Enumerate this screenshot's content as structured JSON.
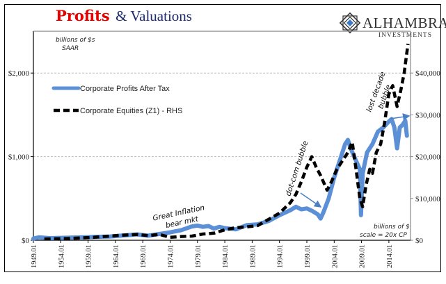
{
  "chart_data": {
    "type": "line",
    "title": {
      "part1": "Profits",
      "part2": "& Valuations"
    },
    "logo": {
      "name": "ALHAMBRA",
      "sub": "INVESTMENTS"
    },
    "left_axis": {
      "unit_note_line1": "billions of $s",
      "unit_note_line2": "SAAR",
      "ylim": [
        0,
        2500
      ],
      "ticks": [
        0,
        1000,
        2000
      ],
      "tick_labels": [
        "$0",
        "$1,000",
        "$2,000"
      ]
    },
    "right_axis": {
      "unit_note_line1": "billions of $",
      "unit_note_line2": "scale = 20x CP",
      "ylim": [
        0,
        50000
      ],
      "ticks": [
        0,
        10000,
        20000,
        30000,
        40000
      ],
      "tick_labels": [
        "$0",
        "$10,000",
        "$20,000",
        "$30,000",
        "$40,000"
      ]
    },
    "x_axis": {
      "xlim": [
        1949,
        2018
      ],
      "ticks": [
        1949,
        1954,
        1959,
        1964,
        1969,
        1974,
        1979,
        1984,
        1989,
        1994,
        1999,
        2004,
        2009,
        2014
      ],
      "tick_labels": [
        "1949.01",
        "1954.01",
        "1959.01",
        "1964.01",
        "1969.01",
        "1974.01",
        "1979.01",
        "1984.01",
        "1989.01",
        "1994.01",
        "1999.01",
        "2004.01",
        "2009.01",
        "2014.01"
      ]
    },
    "grid": true,
    "legend": {
      "placement": "top-left",
      "entries": [
        "Corporate Profits After Tax",
        "Corporate Equities (Z1) - RHS"
      ]
    },
    "series": [
      {
        "name": "Corporate Profits After Tax",
        "axis": "left",
        "color": "#5b8fd6",
        "style": "solid",
        "x": [
          1949,
          1950,
          1952,
          1955,
          1958,
          1960,
          1963,
          1966,
          1968,
          1970,
          1972,
          1974,
          1976,
          1978,
          1979,
          1980,
          1981,
          1982,
          1983,
          1984,
          1986,
          1988,
          1990,
          1992,
          1994,
          1996,
          1997,
          1998,
          1999,
          2000,
          2001,
          2001.5,
          2002,
          2003,
          2004,
          2005,
          2006,
          2006.5,
          2007,
          2008,
          2008.7,
          2008.9,
          2009.2,
          2010,
          2011,
          2012,
          2013,
          2014,
          2014.5,
          2015,
          2015.5,
          2016,
          2016.5,
          2017,
          2017.3
        ],
        "values": [
          20,
          35,
          25,
          30,
          35,
          40,
          45,
          60,
          70,
          55,
          75,
          95,
          120,
          165,
          175,
          160,
          170,
          140,
          160,
          145,
          130,
          180,
          190,
          230,
          300,
          360,
          400,
          370,
          380,
          350,
          310,
          260,
          330,
          500,
          750,
          950,
          1150,
          1200,
          1100,
          950,
          850,
          300,
          800,
          1050,
          1150,
          1300,
          1350,
          1420,
          1450,
          1350,
          1100,
          1350,
          1380,
          1430,
          1250
        ]
      },
      {
        "name": "Corporate Equities (Z1) - RHS",
        "axis": "right",
        "color": "#000000",
        "style": "dashed",
        "x": [
          1951,
          1955,
          1960,
          1965,
          1968,
          1970,
          1972,
          1974,
          1976,
          1978,
          1980,
          1982,
          1984,
          1986,
          1988,
          1990,
          1992,
          1994,
          1996,
          1997,
          1998,
          1999,
          1999.9,
          2000.7,
          2001.5,
          2002.7,
          2003.5,
          2004.5,
          2005.5,
          2006.5,
          2007.3,
          2008,
          2008.7,
          2009.2,
          2009.8,
          2010.5,
          2011,
          2011.7,
          2012.5,
          2013.2,
          2014,
          2014.7,
          2015.5,
          2016.2,
          2016.8,
          2017.5
        ],
        "values": [
          300,
          400,
          700,
          1200,
          1400,
          1100,
          1400,
          700,
          900,
          1000,
          1500,
          1700,
          2500,
          3000,
          3200,
          3500,
          5000,
          6500,
          9000,
          11000,
          14000,
          17500,
          20000,
          17500,
          15500,
          12000,
          14000,
          17000,
          19000,
          21000,
          23500,
          17000,
          10000,
          8000,
          13000,
          17000,
          16000,
          21000,
          23000,
          28000,
          35000,
          37000,
          32000,
          36000,
          40000,
          47000
        ]
      }
    ],
    "annotations": [
      {
        "text_line1": "Great Inflation",
        "text_line2": "bear mkt"
      },
      {
        "text": "dot-com bubble"
      },
      {
        "text_line1": "lost decade",
        "text_line2": "bubble"
      }
    ]
  }
}
